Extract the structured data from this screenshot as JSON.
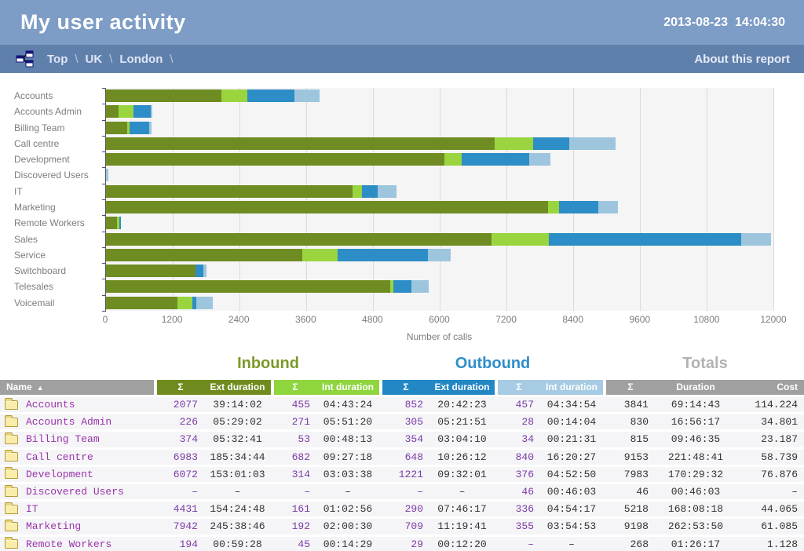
{
  "header": {
    "title": "My user activity",
    "timestamp": "2013-08-23  14:04:30"
  },
  "breadcrumb": {
    "icon": "sitemap-icon",
    "items": [
      "Top",
      "UK",
      "London"
    ],
    "separator": "\\",
    "trailing_separator": "\\",
    "about_link": "About this report"
  },
  "chart_data": {
    "type": "bar",
    "orientation": "horizontal",
    "xlabel": "Number of calls",
    "xlim": [
      0,
      12000
    ],
    "xticks": [
      0,
      1200,
      2400,
      3600,
      4800,
      6000,
      7200,
      8400,
      9600,
      10800,
      12000
    ],
    "grid": true,
    "legend": false,
    "categories": [
      "Accounts",
      "Accounts Admin",
      "Billing Team",
      "Call centre",
      "Development",
      "Discovered Users",
      "IT",
      "Marketing",
      "Remote Workers",
      "Sales",
      "Service",
      "Switchboard",
      "Telesales",
      "Voicemail"
    ],
    "series": [
      {
        "name": "Inbound external",
        "color": "#6f8c23",
        "values": [
          2077,
          226,
          374,
          6983,
          6072,
          0,
          4431,
          7942,
          194,
          6930,
          3520,
          1610,
          5100,
          1285
        ]
      },
      {
        "name": "Inbound internal",
        "color": "#9ad53f",
        "values": [
          455,
          271,
          53,
          682,
          314,
          0,
          161,
          192,
          45,
          1020,
          640,
          0,
          60,
          270
        ]
      },
      {
        "name": "Outbound external",
        "color": "#2d8dc6",
        "values": [
          852,
          305,
          354,
          648,
          1221,
          0,
          290,
          709,
          29,
          3460,
          1620,
          140,
          320,
          70
        ]
      },
      {
        "name": "Outbound internal",
        "color": "#9dc6de",
        "values": [
          457,
          28,
          34,
          840,
          376,
          46,
          336,
          355,
          0,
          540,
          410,
          60,
          320,
          300
        ]
      }
    ]
  },
  "table": {
    "group_titles": {
      "inbound": "Inbound",
      "outbound": "Outbound",
      "totals": "Totals"
    },
    "name_header": "Name",
    "sort_indicator": "▲",
    "headers": {
      "sum": "Σ",
      "ext_duration": "Ext duration",
      "int_duration": "Int duration",
      "duration": "Duration",
      "cost": "Cost"
    },
    "rows": [
      {
        "name": "Accounts",
        "cells": [
          "2077",
          "39:14:02",
          "455",
          "04:43:24",
          "852",
          "20:42:23",
          "457",
          "04:34:54",
          "3841",
          "69:14:43",
          "114.224"
        ]
      },
      {
        "name": "Accounts Admin",
        "cells": [
          "226",
          "05:29:02",
          "271",
          "05:51:20",
          "305",
          "05:21:51",
          "28",
          "00:14:04",
          "830",
          "16:56:17",
          "34.801"
        ]
      },
      {
        "name": "Billing Team",
        "cells": [
          "374",
          "05:32:41",
          "53",
          "00:48:13",
          "354",
          "03:04:10",
          "34",
          "00:21:31",
          "815",
          "09:46:35",
          "23.187"
        ]
      },
      {
        "name": "Call centre",
        "cells": [
          "6983",
          "185:34:44",
          "682",
          "09:27:18",
          "648",
          "10:26:12",
          "840",
          "16:20:27",
          "9153",
          "221:48:41",
          "58.739"
        ]
      },
      {
        "name": "Development",
        "cells": [
          "6072",
          "153:01:03",
          "314",
          "03:03:38",
          "1221",
          "09:32:01",
          "376",
          "04:52:50",
          "7983",
          "170:29:32",
          "76.876"
        ]
      },
      {
        "name": "Discovered Users",
        "cells": [
          "–",
          "–",
          "–",
          "–",
          "–",
          "–",
          "46",
          "00:46:03",
          "46",
          "00:46:03",
          "–"
        ]
      },
      {
        "name": "IT",
        "cells": [
          "4431",
          "154:24:48",
          "161",
          "01:02:56",
          "290",
          "07:46:17",
          "336",
          "04:54:17",
          "5218",
          "168:08:18",
          "44.065"
        ]
      },
      {
        "name": "Marketing",
        "cells": [
          "7942",
          "245:38:46",
          "192",
          "02:00:30",
          "709",
          "11:19:41",
          "355",
          "03:54:53",
          "9198",
          "262:53:50",
          "61.085"
        ]
      },
      {
        "name": "Remote Workers",
        "cells": [
          "194",
          "00:59:28",
          "45",
          "00:14:29",
          "29",
          "00:12:20",
          "–",
          "–",
          "268",
          "01:26:17",
          "1.128"
        ]
      }
    ]
  }
}
